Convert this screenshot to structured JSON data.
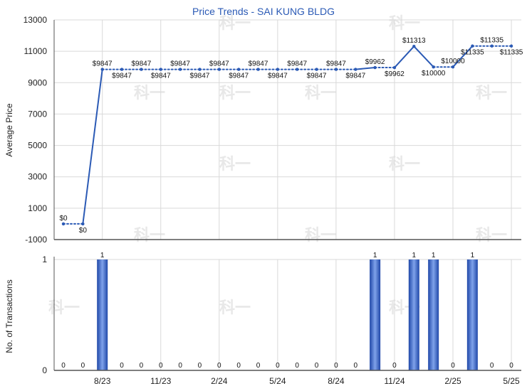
{
  "chart_data": [
    {
      "type": "line",
      "title": "Price Trends - SAI KUNG BLDG",
      "ylabel": "Average Price",
      "ylim": [
        -1000,
        13000
      ],
      "y_ticks": [
        "13000",
        "11000",
        "9000",
        "7000",
        "5000",
        "3000",
        "1000",
        "-1000"
      ],
      "x": [
        "2023-06",
        "2023-07",
        "2023-08",
        "2023-09",
        "2023-10",
        "2023-11",
        "2023-12",
        "2024-01",
        "2024-02",
        "2024-03",
        "2024-04",
        "2024-05",
        "2024-06",
        "2024-07",
        "2024-08",
        "2024-09",
        "2024-10",
        "2024-11",
        "2024-12",
        "2025-01",
        "2025-02",
        "2025-03",
        "2025-04",
        "2025-05"
      ],
      "values": [
        0,
        0,
        9847,
        9847,
        9847,
        9847,
        9847,
        9847,
        9847,
        9847,
        9847,
        9847,
        9847,
        9847,
        9847,
        9847,
        9962,
        9962,
        11313,
        10000,
        10000,
        11335,
        11335,
        11335
      ],
      "transaction_month": [
        false,
        false,
        true,
        false,
        false,
        false,
        false,
        false,
        false,
        false,
        false,
        false,
        false,
        false,
        false,
        false,
        true,
        false,
        true,
        true,
        false,
        true,
        false,
        false
      ],
      "labels": [
        "$0",
        "$0",
        "$9847",
        "$9847",
        "$9847",
        "$9847",
        "$9847",
        "$9847",
        "$9847",
        "$9847",
        "$9847",
        "$9847",
        "$9847",
        "$9847",
        "$9847",
        "$9847",
        "$9962",
        "$9962",
        "$11313",
        "$10000",
        "$10000",
        "$11335",
        "$11335",
        "$11335"
      ],
      "line_color": "#2b5ab5"
    },
    {
      "type": "bar",
      "ylabel": "No. of Transactions",
      "ylim": [
        0,
        1
      ],
      "y_ticks": [
        "1",
        "0"
      ],
      "x": [
        "2023-06",
        "2023-07",
        "2023-08",
        "2023-09",
        "2023-10",
        "2023-11",
        "2023-12",
        "2024-01",
        "2024-02",
        "2024-03",
        "2024-04",
        "2024-05",
        "2024-06",
        "2024-07",
        "2024-08",
        "2024-09",
        "2024-10",
        "2024-11",
        "2024-12",
        "2025-01",
        "2025-02",
        "2025-03",
        "2025-04",
        "2025-05"
      ],
      "values": [
        0,
        0,
        1,
        0,
        0,
        0,
        0,
        0,
        0,
        0,
        0,
        0,
        0,
        0,
        0,
        0,
        1,
        0,
        1,
        1,
        0,
        1,
        0,
        0
      ],
      "labels": [
        "0",
        "0",
        "1",
        "0",
        "0",
        "0",
        "0",
        "0",
        "0",
        "0",
        "0",
        "0",
        "0",
        "0",
        "0",
        "0",
        "1",
        "0",
        "1",
        "1",
        "0",
        "1",
        "0",
        "0"
      ],
      "bar_color": "#2e5fc7"
    }
  ],
  "x_ticks": [
    {
      "value": "2023-08",
      "label": "8/23"
    },
    {
      "value": "2023-11",
      "label": "11/23"
    },
    {
      "value": "2024-02",
      "label": "2/24"
    },
    {
      "value": "2024-05",
      "label": "5/24"
    },
    {
      "value": "2024-08",
      "label": "8/24"
    },
    {
      "value": "2024-11",
      "label": "11/24"
    },
    {
      "value": "2025-02",
      "label": "2/25"
    },
    {
      "value": "2025-05",
      "label": "5/25"
    }
  ],
  "watermark": "科一",
  "colors": {
    "grid": "#d9d9d9",
    "axis": "#555555"
  }
}
